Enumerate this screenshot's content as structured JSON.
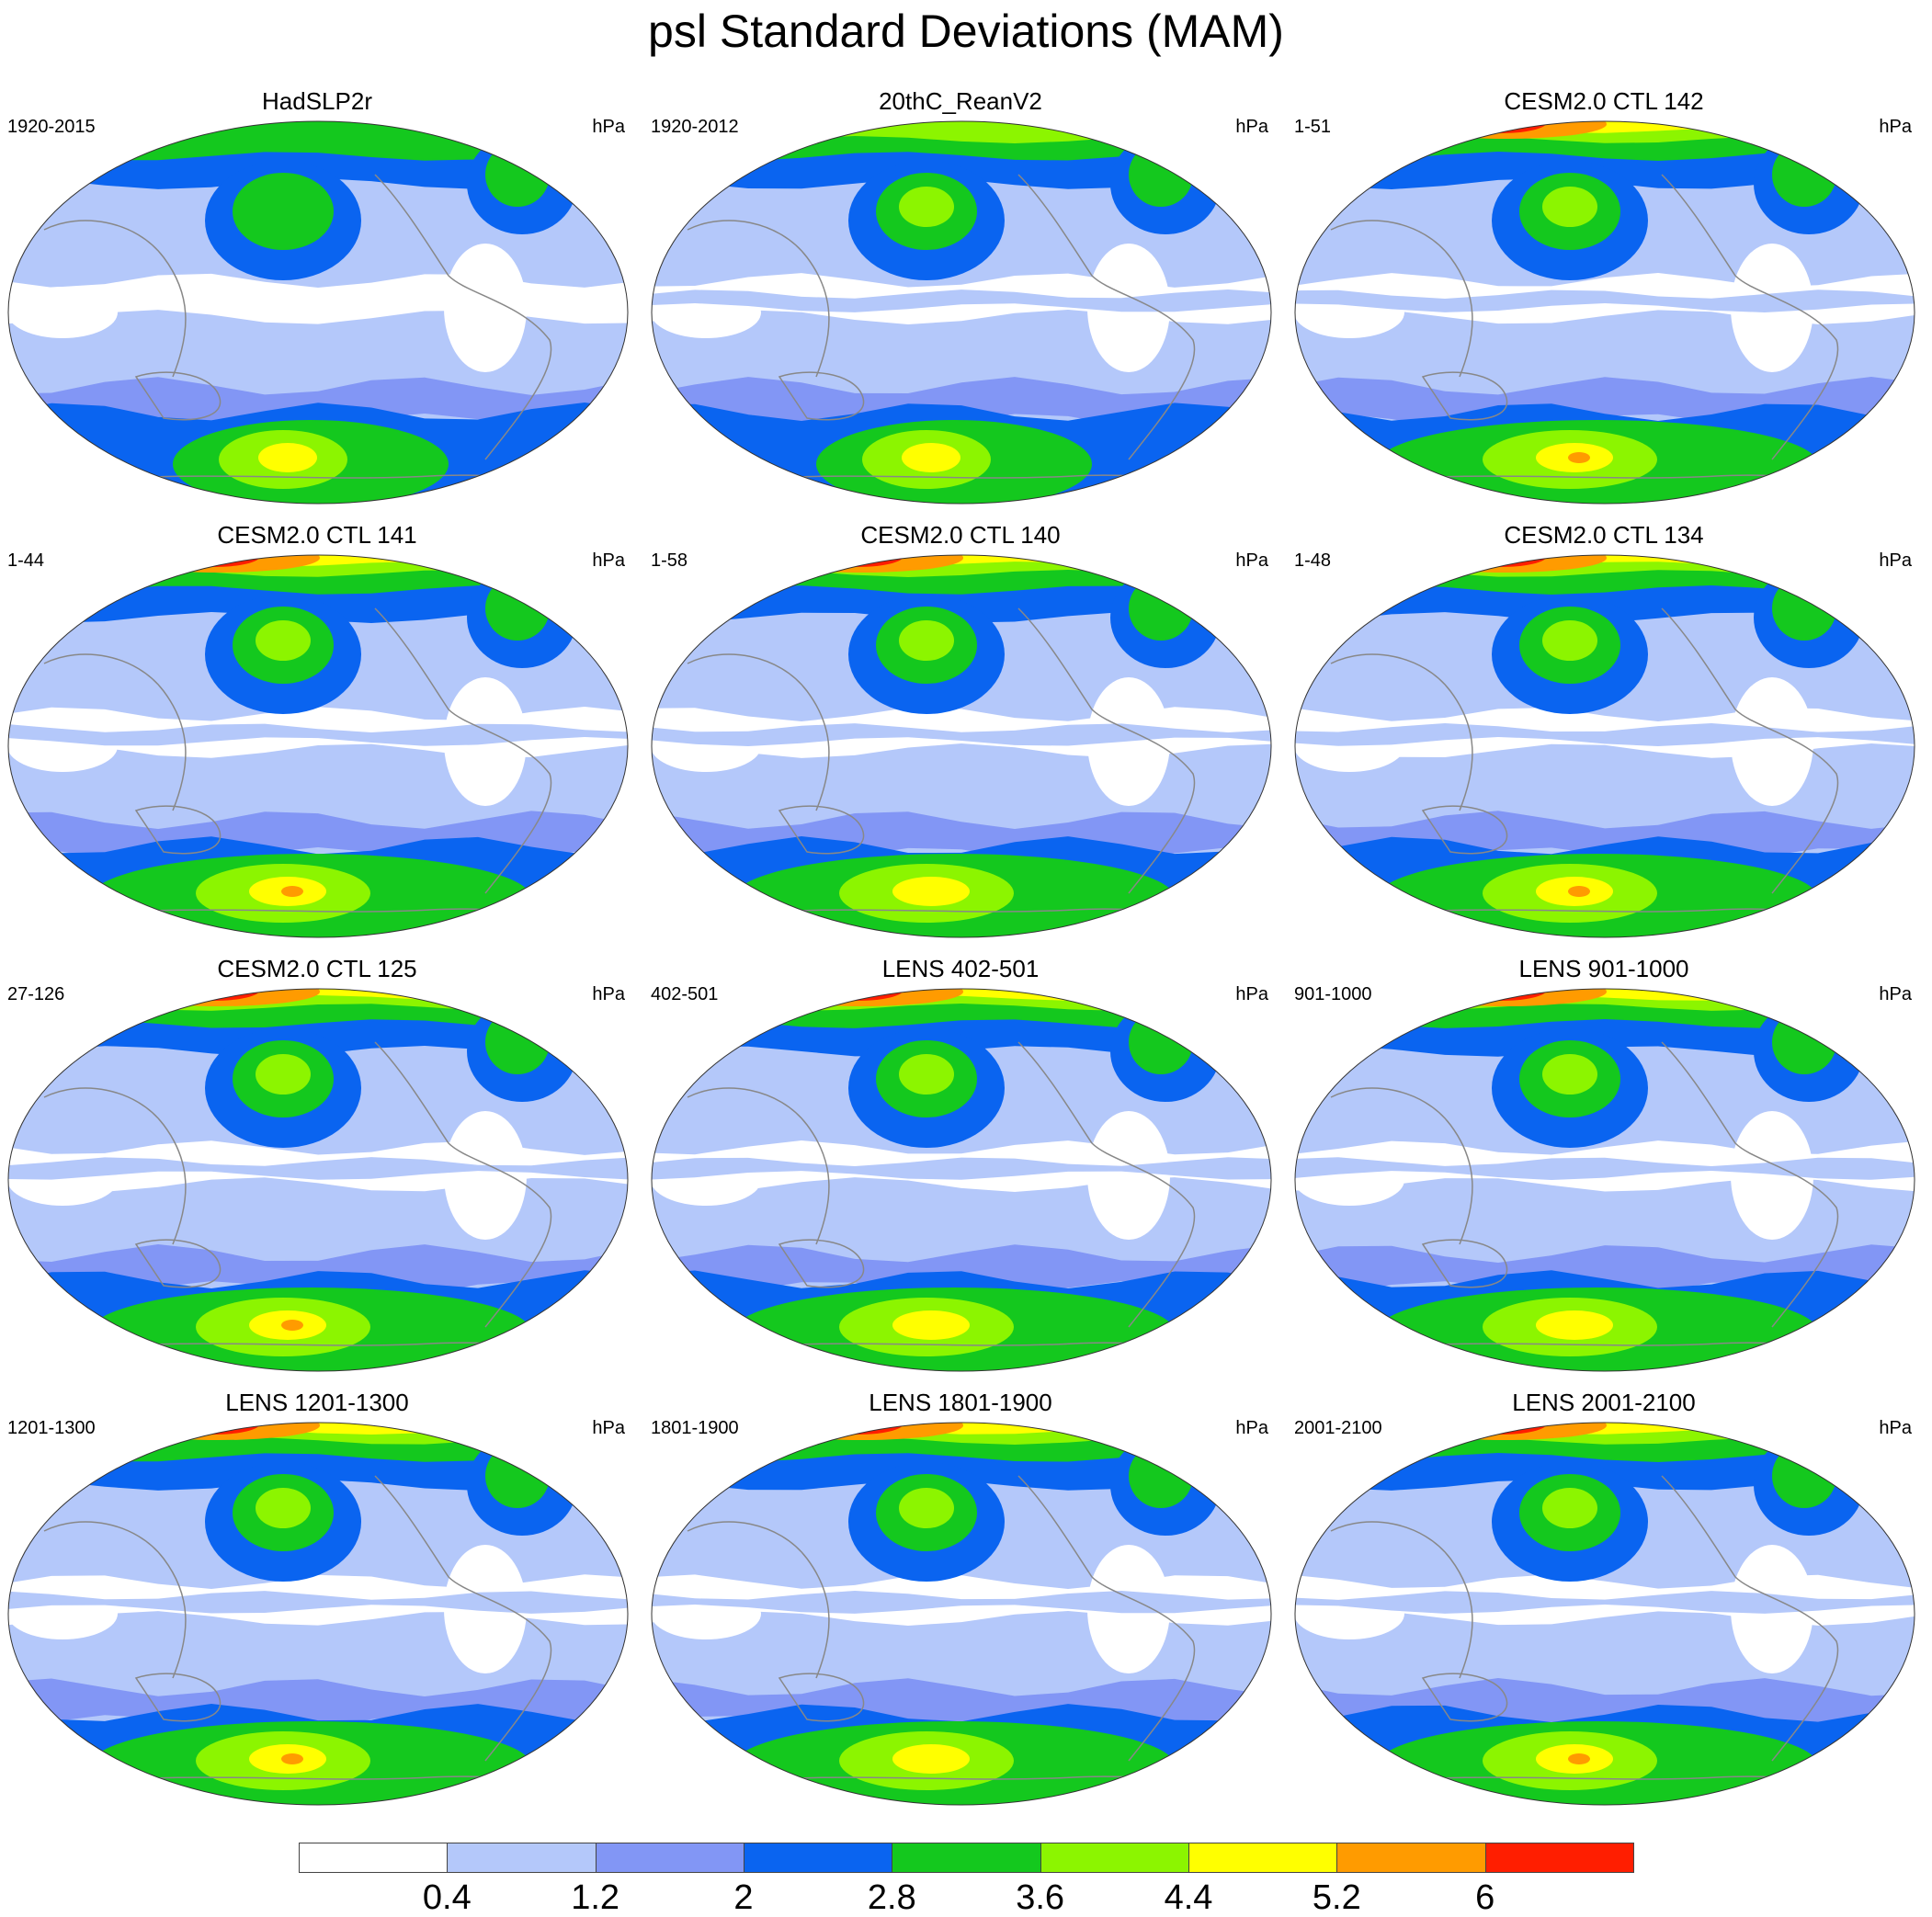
{
  "title": "psl Standard Deviations (MAM)",
  "unit_label": "hPa",
  "panels": [
    {
      "title": "HadSLP2r",
      "range": "1920-2015",
      "variant": 1
    },
    {
      "title": "20thC_ReanV2",
      "range": "1920-2012",
      "variant": 2
    },
    {
      "title": "CESM2.0 CTL 142",
      "range": "1-51",
      "variant": 3
    },
    {
      "title": "CESM2.0 CTL 141",
      "range": "1-44",
      "variant": 3
    },
    {
      "title": "CESM2.0 CTL 140",
      "range": "1-58",
      "variant": 4
    },
    {
      "title": "CESM2.0 CTL 134",
      "range": "1-48",
      "variant": 3
    },
    {
      "title": "CESM2.0 CTL 125",
      "range": "27-126",
      "variant": 3
    },
    {
      "title": "LENS 402-501",
      "range": "402-501",
      "variant": 4
    },
    {
      "title": "LENS 901-1000",
      "range": "901-1000",
      "variant": 4
    },
    {
      "title": "LENS 1201-1300",
      "range": "1201-1300",
      "variant": 3
    },
    {
      "title": "LENS 1801-1900",
      "range": "1801-1900",
      "variant": 4
    },
    {
      "title": "LENS 2001-2100",
      "range": "2001-2100",
      "variant": 3
    }
  ],
  "colorbar": {
    "colors": [
      "#ffffff",
      "#b4c8fa",
      "#8296f5",
      "#0a64f0",
      "#14c81e",
      "#8cf500",
      "#ffff00",
      "#ff9b00",
      "#ff1e00"
    ],
    "labels": [
      "0.4",
      "1.2",
      "2",
      "2.8",
      "3.6",
      "4.4",
      "5.2",
      "6"
    ]
  },
  "map_colors": {
    "coast": "#888888",
    "border": "#333333"
  }
}
